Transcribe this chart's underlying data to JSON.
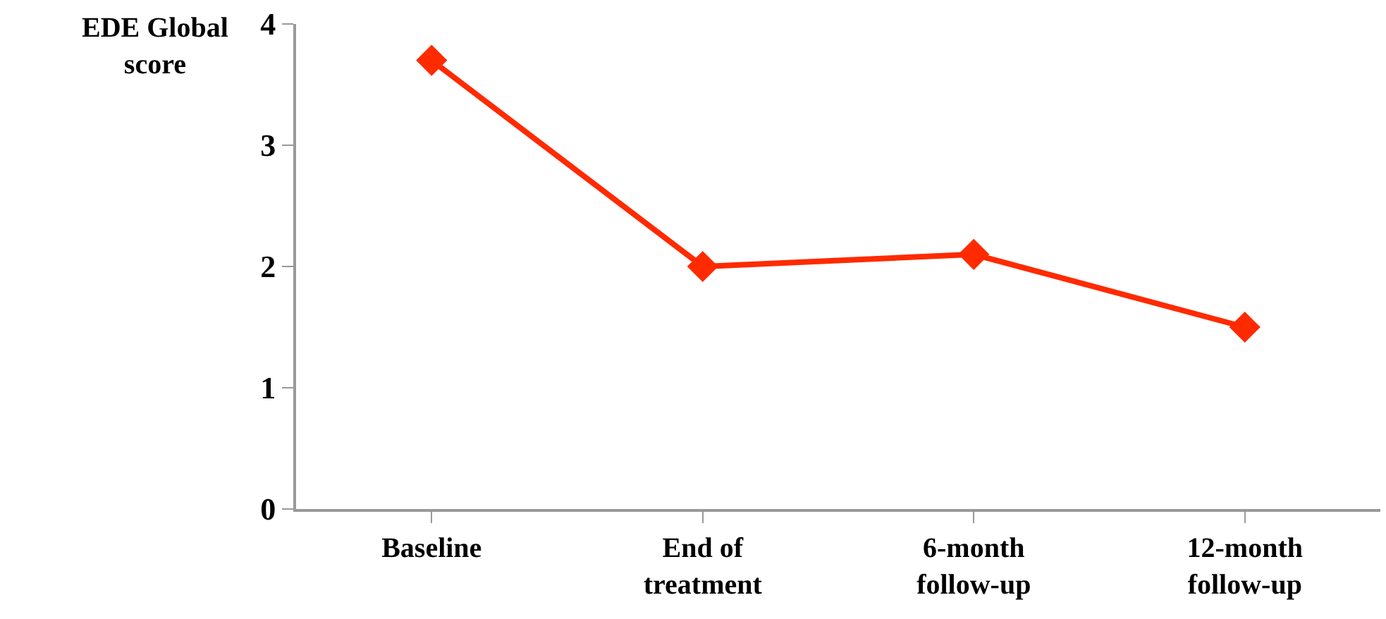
{
  "chart_data": {
    "type": "line",
    "ylabel": "EDE Global score",
    "categories": [
      "Baseline",
      "End of treatment",
      "6-month follow-up",
      "12-month follow-up"
    ],
    "series": [
      {
        "color": "#ff2a00",
        "values": [
          3.7,
          2.0,
          2.1,
          1.5
        ]
      }
    ],
    "ylim": [
      0,
      4
    ],
    "yticks": [
      0,
      1,
      2,
      3,
      4
    ],
    "marker": "diamond",
    "line_style": "solid"
  }
}
